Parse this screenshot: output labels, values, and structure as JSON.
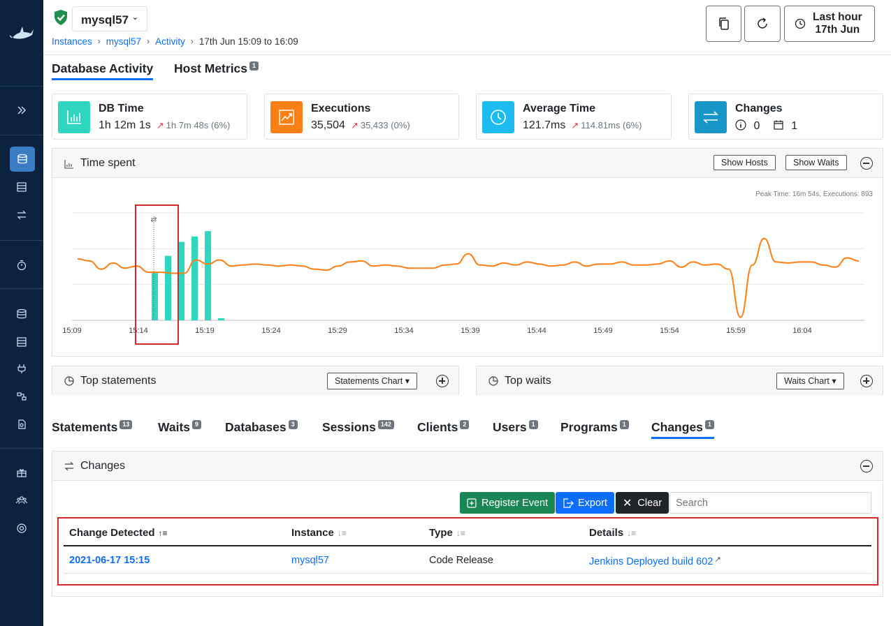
{
  "header": {
    "instance": "mysql57",
    "breadcrumb": [
      "Instances",
      "mysql57",
      "Activity",
      "17th Jun 15:09 to 16:09"
    ],
    "time_range_line1": "Last hour",
    "time_range_line2": "17th Jun"
  },
  "main_tabs": [
    {
      "label": "Database Activity",
      "active": true
    },
    {
      "label": "Host Metrics",
      "badge": "1"
    }
  ],
  "metrics": [
    {
      "title": "DB Time",
      "value": "1h 12m 1s",
      "compare": "1h 7m 48s (6%)",
      "color": "#2fd6c0",
      "icon": "bar-chart-icon"
    },
    {
      "title": "Executions",
      "value": "35,504",
      "compare": "35,433 (0%)",
      "color": "#fd7e14",
      "icon": "trending-up-icon"
    },
    {
      "title": "Average Time",
      "value": "121.7ms",
      "compare": "114.81ms (6%)",
      "color": "#1ea8e6",
      "icon": "clock-icon"
    },
    {
      "title": "Changes",
      "info_count": "0",
      "calendar_count": "1",
      "color": "#1796c7",
      "icon": "arrows-exchange-icon"
    }
  ],
  "time_spent": {
    "title": "Time spent",
    "show_hosts": "Show Hosts",
    "show_waits": "Show Waits",
    "peak": "Peak Time: 16m 54s, Executions: 893"
  },
  "chart_data": {
    "type": "bar",
    "x_ticks": [
      "15:09",
      "15:14",
      "15:19",
      "15:24",
      "15:29",
      "15:34",
      "15:39",
      "15:44",
      "15:49",
      "15:54",
      "15:59",
      "16:04"
    ],
    "bars": {
      "x": [
        "15:15",
        "15:16",
        "15:17",
        "15:18",
        "15:19",
        "15:20"
      ],
      "values": [
        0.44,
        0.6,
        0.73,
        0.78,
        0.83,
        0.02
      ]
    },
    "line": {
      "series_color": "#fd7e14",
      "values": [
        0.55,
        0.53,
        0.45,
        0.51,
        0.46,
        0.48,
        0.42,
        0.42,
        0.41,
        0.41,
        0.54,
        0.5,
        0.54,
        0.48,
        0.49,
        0.5,
        0.49,
        0.48,
        0.49,
        0.48,
        0.45,
        0.44,
        0.48,
        0.52,
        0.53,
        0.48,
        0.49,
        0.48,
        0.46,
        0.46,
        0.46,
        0.49,
        0.5,
        0.6,
        0.49,
        0.48,
        0.51,
        0.49,
        0.52,
        0.5,
        0.48,
        0.49,
        0.52,
        0.48,
        0.5,
        0.5,
        0.52,
        0.49,
        0.49,
        0.5,
        0.53,
        0.47,
        0.52,
        0.49,
        0.5,
        0.45,
        -0.02,
        0.49,
        0.75,
        0.52,
        0.51,
        0.52,
        0.52,
        0.49,
        0.47,
        0.56,
        0.53
      ],
      "min": -0.05,
      "max": 1
    },
    "marker_x": "15:15"
  },
  "top_statements": {
    "title": "Top statements",
    "dropdown": "Statements Chart"
  },
  "top_waits": {
    "title": "Top waits",
    "dropdown": "Waits Chart"
  },
  "sub_tabs": [
    {
      "label": "Statements",
      "badge": "13"
    },
    {
      "label": "Waits",
      "badge": "9"
    },
    {
      "label": "Databases",
      "badge": "3"
    },
    {
      "label": "Sessions",
      "badge": "142"
    },
    {
      "label": "Clients",
      "badge": "2"
    },
    {
      "label": "Users",
      "badge": "1"
    },
    {
      "label": "Programs",
      "badge": "1"
    },
    {
      "label": "Changes",
      "badge": "1",
      "active": true
    }
  ],
  "changes": {
    "title": "Changes",
    "register_event": "Register Event",
    "export": "Export",
    "clear": "Clear",
    "search_placeholder": "Search",
    "columns": [
      "Change Detected",
      "Instance",
      "Type",
      "Details"
    ],
    "rows": [
      {
        "change_detected": "2021-06-17 15:15",
        "instance": "mysql57",
        "type": "Code Release",
        "details": "Jenkins Deployed build 602"
      }
    ]
  }
}
